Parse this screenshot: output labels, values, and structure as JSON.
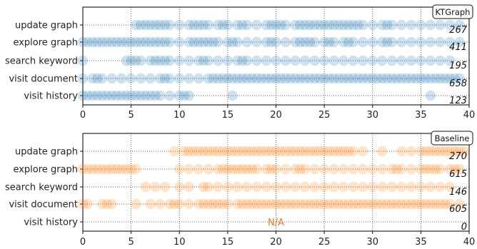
{
  "chart_data": [
    {
      "type": "scatter",
      "badge": "KTGraph",
      "color": "#1f77b4",
      "xlim": [
        0,
        40
      ],
      "xticks": [
        "0",
        "5",
        "10",
        "15",
        "20",
        "25",
        "30",
        "35",
        "40"
      ],
      "grid": true,
      "rows": [
        {
          "label": "update graph",
          "count": "267",
          "points": [
            5.5,
            6,
            6.5,
            7,
            7.5,
            8,
            8.5,
            9,
            10,
            11,
            11.5,
            12,
            12.5,
            13,
            14,
            14.5,
            15,
            16,
            16.5,
            17,
            18,
            19,
            19.5,
            20,
            20.5,
            21,
            22,
            22.5,
            23,
            23.5,
            24,
            24.5,
            25,
            25.5,
            26,
            26.5,
            27,
            27.5,
            28,
            28.5,
            29,
            30,
            31,
            31.5,
            32,
            33,
            34,
            35,
            36,
            37,
            38,
            39
          ]
        },
        {
          "label": "explore graph",
          "count": "411",
          "points": [
            0,
            0.5,
            1,
            1.5,
            2,
            2.5,
            3,
            3.5,
            4,
            4.5,
            5,
            5.5,
            6,
            6.5,
            7,
            7.5,
            8,
            8.5,
            9,
            10,
            11,
            11.5,
            12,
            12.5,
            13,
            13.5,
            14,
            15,
            15.5,
            16,
            17,
            18,
            19,
            19.5,
            20,
            21,
            22,
            22.5,
            23,
            23.5,
            24,
            25,
            25.5,
            26,
            27,
            27.5,
            28,
            29,
            30,
            31,
            31.5,
            32,
            33,
            34,
            35,
            36,
            37,
            38,
            39
          ]
        },
        {
          "label": "search keyword",
          "count": "195",
          "points": [
            0,
            4.5,
            5,
            5.5,
            6,
            7,
            7.5,
            8,
            8.5,
            9,
            10,
            11,
            12,
            12.5,
            13,
            14,
            15,
            16,
            16.5,
            17,
            18,
            19,
            20,
            21,
            22,
            23,
            24,
            25,
            26,
            27,
            28,
            29,
            30,
            31,
            32,
            33,
            34,
            35,
            36,
            37,
            38
          ]
        },
        {
          "label": "visit document",
          "count": "658",
          "points": [
            0,
            1,
            1.5,
            2,
            3,
            4,
            5,
            6,
            7,
            8,
            8.5,
            9,
            10,
            11,
            12,
            13,
            13.5,
            14,
            14.5,
            15,
            15.5,
            16,
            16.5,
            17,
            17.5,
            18,
            18.5,
            19,
            19.5,
            20,
            20.5,
            21,
            21.5,
            22,
            22.5,
            23,
            23.5,
            24,
            24.5,
            25,
            25.5,
            26,
            26.5,
            27,
            27.5,
            28,
            28.5,
            29,
            29.5,
            30,
            30.5,
            31,
            31.5,
            32,
            32.5,
            33,
            33.5,
            34,
            34.5,
            35,
            35.5,
            36,
            36.5,
            37,
            37.5,
            38,
            38.5,
            39
          ]
        },
        {
          "label": "visit history",
          "count": "123",
          "points": [
            0,
            0.5,
            1,
            1.5,
            2,
            2.5,
            3,
            3.5,
            4,
            4.5,
            5,
            5.5,
            6,
            6.5,
            7,
            7.5,
            8,
            9,
            10,
            10.5,
            11,
            15.5,
            36
          ]
        }
      ]
    },
    {
      "type": "scatter",
      "badge": "Baseline",
      "color": "#ff7f0e",
      "xlim": [
        0,
        40
      ],
      "xticks": [
        "0",
        "5",
        "10",
        "15",
        "20",
        "25",
        "30",
        "35",
        "40"
      ],
      "grid": true,
      "rows": [
        {
          "label": "update graph",
          "count": "270",
          "points": [
            9.5,
            10.5,
            11,
            11.5,
            12,
            12.5,
            13,
            13.5,
            14,
            14.5,
            15,
            15.5,
            16,
            16.5,
            17,
            17.5,
            18,
            18.5,
            19,
            19.5,
            20,
            20.5,
            21,
            21.5,
            22,
            22.5,
            23,
            23.5,
            24,
            24.5,
            25,
            25.5,
            26,
            26.5,
            27,
            27.5,
            28,
            29,
            31,
            33,
            34,
            35,
            35.5,
            36,
            36.5,
            37,
            37.5,
            38,
            38.5,
            39,
            39.5
          ]
        },
        {
          "label": "explore graph",
          "count": "615",
          "points": [
            0,
            0.5,
            1,
            1.5,
            2,
            2.5,
            3,
            3.5,
            4,
            4.5,
            5,
            5.5,
            10,
            11,
            12,
            13,
            14,
            14.5,
            15,
            15.5,
            16,
            16.5,
            17,
            17.5,
            18,
            19,
            19.5,
            20,
            21,
            22,
            22.5,
            23,
            24,
            25,
            26,
            27,
            28,
            29,
            30,
            31,
            32,
            32.5,
            33,
            34,
            35,
            35.5,
            36,
            36.5,
            37,
            38,
            38.5,
            39
          ]
        },
        {
          "label": "search keyword",
          "count": "146",
          "points": [
            6.5,
            7.5,
            8.5,
            10,
            11,
            12.5,
            13,
            14,
            15,
            16,
            17,
            18,
            19,
            20,
            21,
            22,
            23,
            24,
            25,
            26,
            27,
            28,
            29,
            30,
            31,
            32,
            33,
            34,
            35,
            36,
            37,
            38
          ]
        },
        {
          "label": "visit document",
          "count": "605",
          "points": [
            0,
            0.5,
            2,
            2.5,
            3,
            5.5,
            7,
            8,
            9,
            9.5,
            10,
            11,
            12,
            12.5,
            13,
            13.5,
            14,
            14.5,
            15,
            16,
            16.5,
            17,
            17.5,
            18,
            18.5,
            19,
            19.5,
            20,
            20.5,
            21,
            21.5,
            22,
            22.5,
            23,
            23.5,
            24,
            24.5,
            25,
            25.5,
            26,
            26.5,
            27,
            27.5,
            28,
            28.5,
            29,
            29.5,
            30,
            30.5,
            31,
            31.5,
            32,
            32.5,
            33,
            33.5,
            34,
            34.5,
            35,
            35.5,
            36,
            36.5,
            37,
            37.5,
            38,
            39
          ]
        },
        {
          "label": "visit history",
          "count": "0",
          "points": [],
          "annotation": "N/A"
        }
      ]
    }
  ]
}
